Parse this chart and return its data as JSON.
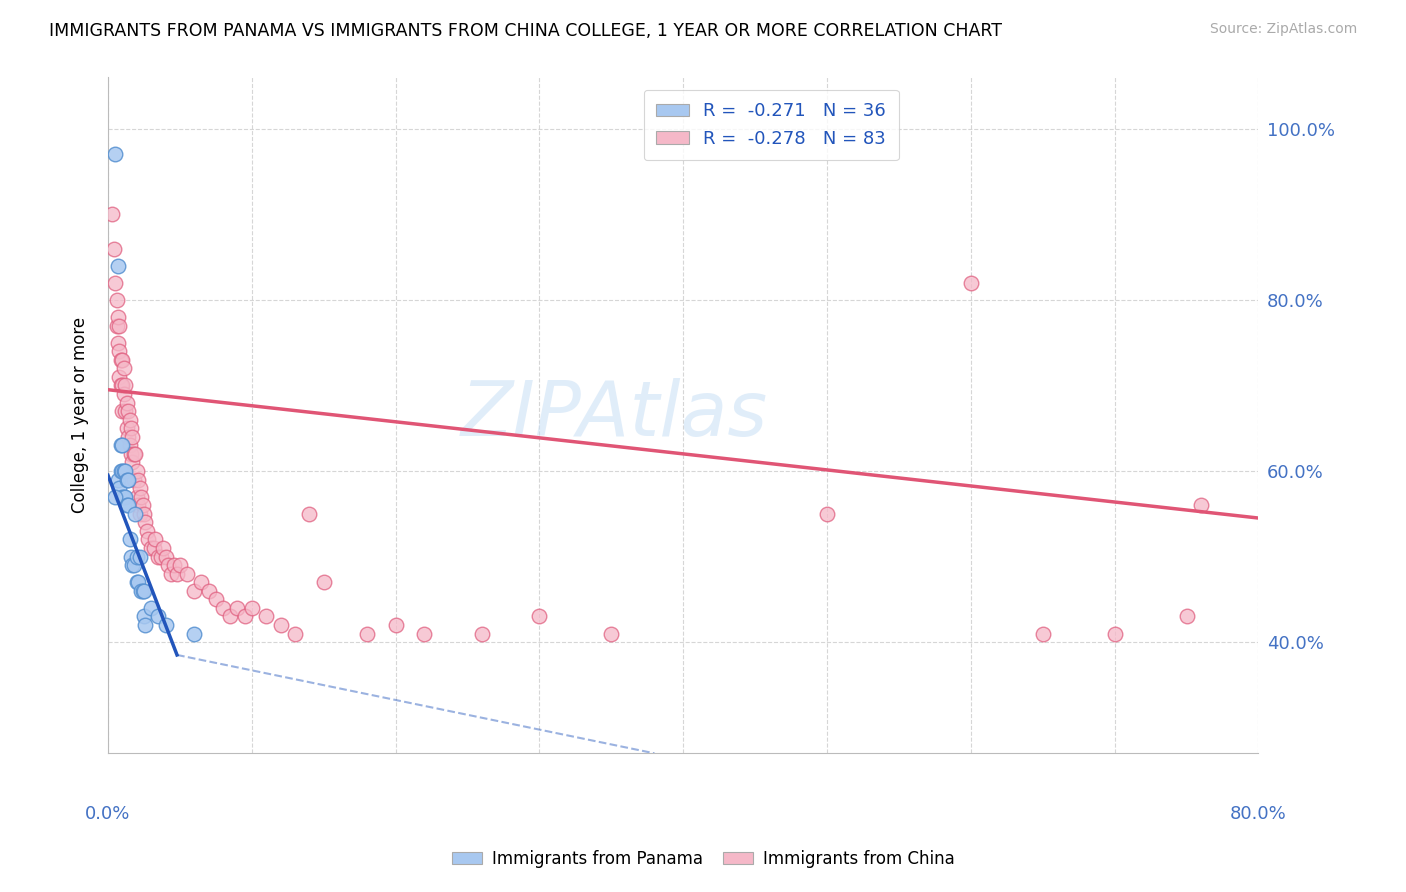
{
  "title": "IMMIGRANTS FROM PANAMA VS IMMIGRANTS FROM CHINA COLLEGE, 1 YEAR OR MORE CORRELATION CHART",
  "source": "Source: ZipAtlas.com",
  "ylabel": "College, 1 year or more",
  "ytick_values": [
    0.4,
    0.6,
    0.8,
    1.0
  ],
  "xlim": [
    0.0,
    0.8
  ],
  "ylim": [
    0.27,
    1.06
  ],
  "legend_panama": "R =  -0.271   N = 36",
  "legend_china": "R =  -0.278   N = 83",
  "legend_label_panama": "Immigrants from Panama",
  "legend_label_china": "Immigrants from China",
  "panama_color": "#a8c8f0",
  "china_color": "#f5b8c8",
  "panama_edge_color": "#5590d0",
  "china_edge_color": "#e06080",
  "panama_line_color": "#2255bb",
  "china_line_color": "#e05575",
  "panama_scatter": {
    "x": [
      0.005,
      0.007,
      0.007,
      0.008,
      0.009,
      0.009,
      0.01,
      0.01,
      0.01,
      0.011,
      0.011,
      0.012,
      0.012,
      0.013,
      0.013,
      0.014,
      0.014,
      0.015,
      0.016,
      0.017,
      0.018,
      0.019,
      0.02,
      0.02,
      0.021,
      0.022,
      0.023,
      0.024,
      0.025,
      0.025,
      0.026,
      0.03,
      0.035,
      0.04,
      0.005,
      0.06
    ],
    "y": [
      0.97,
      0.84,
      0.59,
      0.58,
      0.6,
      0.63,
      0.57,
      0.6,
      0.63,
      0.57,
      0.6,
      0.57,
      0.6,
      0.56,
      0.59,
      0.56,
      0.59,
      0.52,
      0.5,
      0.49,
      0.49,
      0.55,
      0.47,
      0.5,
      0.47,
      0.5,
      0.46,
      0.46,
      0.46,
      0.43,
      0.42,
      0.44,
      0.43,
      0.42,
      0.57,
      0.41
    ]
  },
  "china_scatter": {
    "x": [
      0.003,
      0.004,
      0.005,
      0.006,
      0.006,
      0.007,
      0.007,
      0.008,
      0.008,
      0.008,
      0.009,
      0.009,
      0.01,
      0.01,
      0.01,
      0.011,
      0.011,
      0.012,
      0.012,
      0.013,
      0.013,
      0.014,
      0.014,
      0.015,
      0.015,
      0.016,
      0.016,
      0.017,
      0.017,
      0.018,
      0.018,
      0.019,
      0.02,
      0.02,
      0.021,
      0.021,
      0.022,
      0.022,
      0.023,
      0.024,
      0.025,
      0.026,
      0.027,
      0.028,
      0.03,
      0.032,
      0.033,
      0.035,
      0.037,
      0.038,
      0.04,
      0.042,
      0.044,
      0.046,
      0.048,
      0.05,
      0.055,
      0.06,
      0.065,
      0.07,
      0.075,
      0.08,
      0.085,
      0.09,
      0.095,
      0.1,
      0.11,
      0.12,
      0.13,
      0.14,
      0.15,
      0.18,
      0.2,
      0.22,
      0.26,
      0.3,
      0.35,
      0.5,
      0.6,
      0.65,
      0.7,
      0.75,
      0.76
    ],
    "y": [
      0.9,
      0.86,
      0.82,
      0.8,
      0.77,
      0.78,
      0.75,
      0.77,
      0.74,
      0.71,
      0.73,
      0.7,
      0.73,
      0.7,
      0.67,
      0.72,
      0.69,
      0.7,
      0.67,
      0.68,
      0.65,
      0.67,
      0.64,
      0.66,
      0.63,
      0.65,
      0.62,
      0.64,
      0.61,
      0.62,
      0.59,
      0.62,
      0.6,
      0.57,
      0.59,
      0.56,
      0.58,
      0.55,
      0.57,
      0.56,
      0.55,
      0.54,
      0.53,
      0.52,
      0.51,
      0.51,
      0.52,
      0.5,
      0.5,
      0.51,
      0.5,
      0.49,
      0.48,
      0.49,
      0.48,
      0.49,
      0.48,
      0.46,
      0.47,
      0.46,
      0.45,
      0.44,
      0.43,
      0.44,
      0.43,
      0.44,
      0.43,
      0.42,
      0.41,
      0.55,
      0.47,
      0.41,
      0.42,
      0.41,
      0.41,
      0.43,
      0.41,
      0.55,
      0.82,
      0.41,
      0.41,
      0.43,
      0.56
    ]
  },
  "panama_regression_solid": {
    "x": [
      0.0,
      0.048
    ],
    "y": [
      0.595,
      0.385
    ]
  },
  "panama_regression_dashed": {
    "x": [
      0.048,
      0.38
    ],
    "y": [
      0.385,
      0.27
    ]
  },
  "china_regression": {
    "x": [
      0.0,
      0.8
    ],
    "y": [
      0.695,
      0.545
    ]
  },
  "watermark": "ZIPAtlas"
}
